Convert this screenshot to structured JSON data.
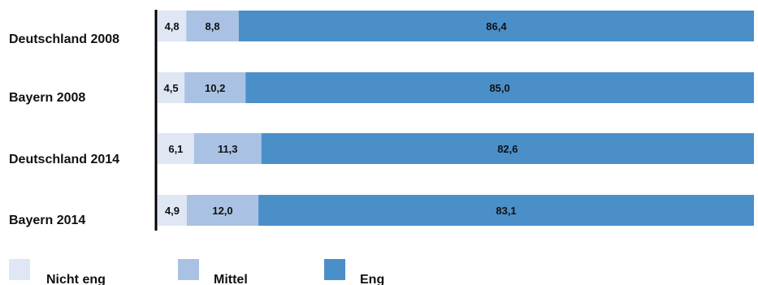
{
  "chart_data": {
    "type": "bar",
    "orientation": "horizontal",
    "stacked": true,
    "normalized_percent": true,
    "categories": [
      "Deutschland 2008",
      "Bayern 2008",
      "Deutschland 2014",
      "Bayern 2014"
    ],
    "series": [
      {
        "name": "Nicht eng",
        "color": "#dfe6f4",
        "values": [
          4.8,
          4.5,
          6.1,
          4.9
        ],
        "value_labels": [
          "4,8",
          "4,5",
          "6,1",
          "4,9"
        ]
      },
      {
        "name": "Mittel",
        "color": "#a9c2e3",
        "values": [
          8.8,
          10.2,
          11.3,
          12.0
        ],
        "value_labels": [
          "8,8",
          "10,2",
          "11,3",
          "12,0"
        ]
      },
      {
        "name": "Eng",
        "color": "#4b8fc9",
        "values": [
          86.4,
          85.0,
          82.6,
          83.1
        ],
        "value_labels": [
          "86,4",
          "85,0",
          "82,6",
          "83,1"
        ]
      }
    ],
    "title": "",
    "xlabel": "",
    "ylabel": "",
    "grid": false,
    "legend_position": "bottom"
  }
}
